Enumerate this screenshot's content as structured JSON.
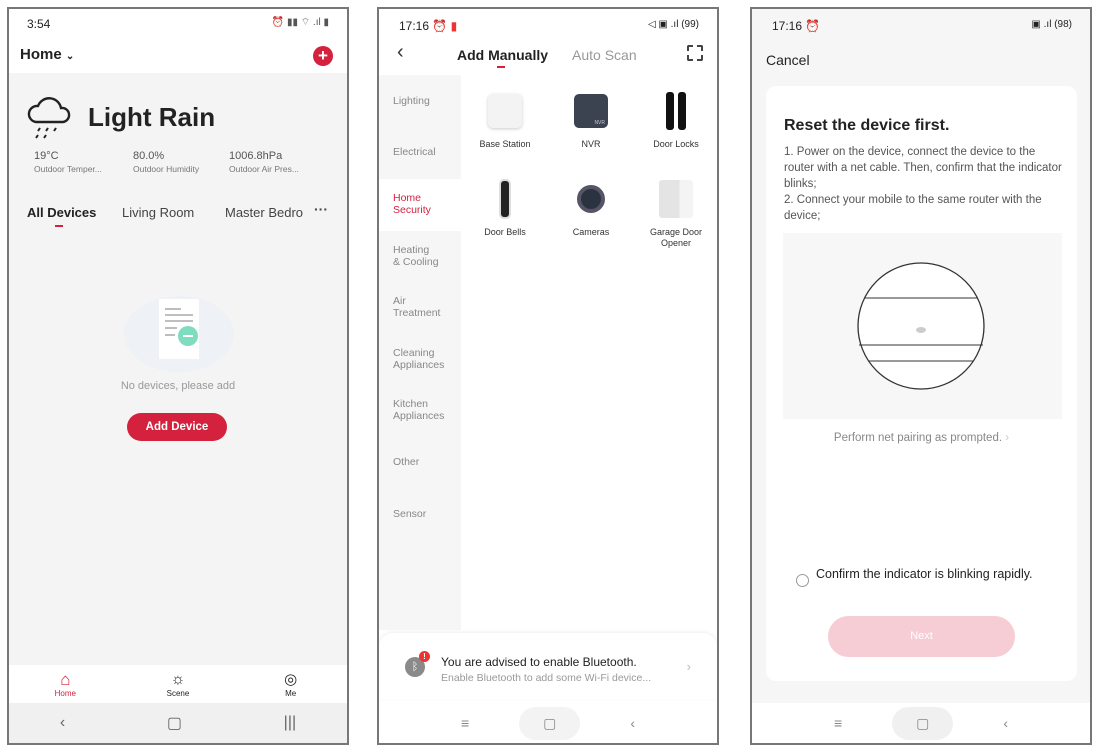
{
  "screen1": {
    "status": {
      "time": "3:54"
    },
    "header": {
      "home_label": "Home",
      "add_icon": "plus-circle-icon"
    },
    "weather": {
      "condition": "Light Rain",
      "icon": "cloud-rain-icon",
      "stats": [
        {
          "value": "19°C",
          "label": "Outdoor Temper..."
        },
        {
          "value": "80.0%",
          "label": "Outdoor Humidity"
        },
        {
          "value": "1006.8hPa",
          "label": "Outdoor Air Pres..."
        }
      ]
    },
    "tabs": [
      "All Devices",
      "Living Room",
      "Master Bedro"
    ],
    "empty_text": "No devices, please add",
    "add_device_label": "Add Device",
    "bottom_nav": [
      {
        "label": "Home",
        "icon": "home-icon"
      },
      {
        "label": "Scene",
        "icon": "sun-icon"
      },
      {
        "label": "Me",
        "icon": "user-icon"
      }
    ],
    "accent": "#d4213d"
  },
  "screen2": {
    "status": {
      "time": "17:16",
      "battery": "99"
    },
    "tabs": [
      "Add Manually",
      "Auto Scan"
    ],
    "categories": [
      "Lighting",
      "Electrical",
      "Home Security",
      "Heating & Cooling",
      "Air Treatment",
      "Cleaning Appliances",
      "Kitchen Appliances",
      "Other",
      "Sensor"
    ],
    "selected_category": "Home Security",
    "devices": [
      "Base Station",
      "NVR",
      "Door Locks",
      "Door Bells",
      "Cameras",
      "Garage Door Opener"
    ],
    "nvr_badge": "NVR",
    "bluetooth": {
      "title": "You are advised to enable Bluetooth.",
      "subtitle": "Enable Bluetooth to add some Wi-Fi device...",
      "badge": "!"
    }
  },
  "screen3": {
    "status": {
      "time": "17:16",
      "battery": "98"
    },
    "cancel_label": "Cancel",
    "title": "Reset the device first.",
    "instructions": "1. Power on the device, connect the device to the router with a net cable. Then, confirm that the indicator blinks;\n2. Connect your mobile to the same router with the device;",
    "pairing_link": "Perform net pairing as prompted.",
    "confirm_label": "Confirm the indicator is blinking rapidly.",
    "next_label": "Next",
    "next_color": "#f6ccd5"
  }
}
